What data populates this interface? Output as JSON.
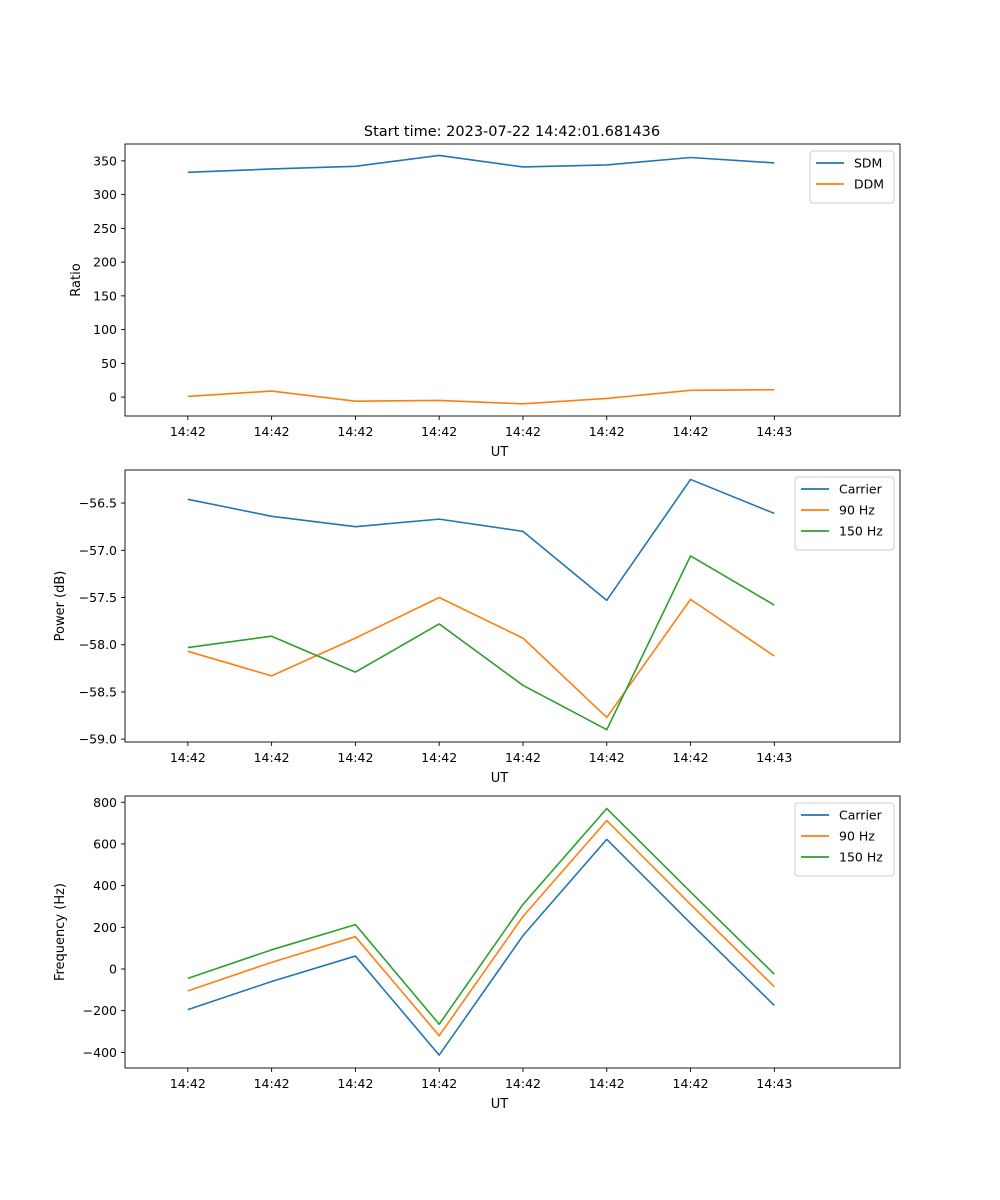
{
  "figure_title": "Start time: 2023-07-22 14:42:01.681436",
  "chart_data": [
    {
      "type": "line",
      "title": "Start time: 2023-07-22 14:42:01.681436",
      "xlabel": "UT",
      "ylabel": "Ratio",
      "x_ticks": [
        "14:42",
        "14:42",
        "14:42",
        "14:42",
        "14:42",
        "14:42",
        "14:42",
        "14:43"
      ],
      "x": [
        0,
        1,
        2,
        3,
        4,
        5,
        6,
        7
      ],
      "xlim": [
        -0.75,
        8.5
      ],
      "ylim": [
        -28,
        375
      ],
      "yticks": [
        0,
        50,
        100,
        150,
        200,
        250,
        300,
        350
      ],
      "ytick_labels": [
        "0",
        "50",
        "100",
        "150",
        "200",
        "250",
        "300",
        "350"
      ],
      "legend_position": "top-right",
      "series": [
        {
          "name": "SDM",
          "color": "#1f77b4",
          "values": [
            333,
            338,
            342,
            358,
            341,
            344,
            355,
            347
          ]
        },
        {
          "name": "DDM",
          "color": "#ff7f0e",
          "values": [
            1,
            9,
            -6,
            -5,
            -10,
            -2,
            10,
            11
          ]
        }
      ]
    },
    {
      "type": "line",
      "title": "",
      "xlabel": "UT",
      "ylabel": "Power (dB)",
      "x_ticks": [
        "14:42",
        "14:42",
        "14:42",
        "14:42",
        "14:42",
        "14:42",
        "14:42",
        "14:43"
      ],
      "x": [
        0,
        1,
        2,
        3,
        4,
        5,
        6,
        7
      ],
      "xlim": [
        -0.75,
        8.5
      ],
      "ylim": [
        -59.03,
        -56.15
      ],
      "yticks": [
        -59.0,
        -58.5,
        -58.0,
        -57.5,
        -57.0,
        -56.5
      ],
      "ytick_labels": [
        "−59.0",
        "−58.5",
        "−58.0",
        "−57.5",
        "−57.0",
        "−56.5"
      ],
      "legend_position": "top-right",
      "series": [
        {
          "name": "Carrier",
          "color": "#1f77b4",
          "values": [
            -56.46,
            -56.64,
            -56.75,
            -56.67,
            -56.8,
            -57.53,
            -56.25,
            -56.61
          ]
        },
        {
          "name": "90 Hz",
          "color": "#ff7f0e",
          "values": [
            -58.07,
            -58.33,
            -57.93,
            -57.5,
            -57.93,
            -58.77,
            -57.52,
            -58.12
          ]
        },
        {
          "name": "150 Hz",
          "color": "#2ca02c",
          "values": [
            -58.03,
            -57.91,
            -58.29,
            -57.78,
            -58.43,
            -58.9,
            -57.06,
            -57.58
          ]
        }
      ]
    },
    {
      "type": "line",
      "title": "",
      "xlabel": "UT",
      "ylabel": "Frequency (Hz)",
      "x_ticks": [
        "14:42",
        "14:42",
        "14:42",
        "14:42",
        "14:42",
        "14:42",
        "14:42",
        "14:43"
      ],
      "x": [
        0,
        1,
        2,
        3,
        4,
        5,
        6,
        7
      ],
      "xlim": [
        -0.75,
        8.5
      ],
      "ylim": [
        -475,
        830
      ],
      "yticks": [
        -400,
        -200,
        0,
        200,
        400,
        600,
        800
      ],
      "ytick_labels": [
        "−400",
        "−200",
        "0",
        "200",
        "400",
        "600",
        "800"
      ],
      "legend_position": "top-right",
      "series": [
        {
          "name": "Carrier",
          "color": "#1f77b4",
          "values": [
            -195,
            -60,
            62,
            -413,
            160,
            622,
            220,
            -175
          ]
        },
        {
          "name": "90 Hz",
          "color": "#ff7f0e",
          "values": [
            -105,
            32,
            155,
            -320,
            252,
            712,
            310,
            -85
          ]
        },
        {
          "name": "150 Hz",
          "color": "#2ca02c",
          "values": [
            -45,
            92,
            213,
            -265,
            310,
            770,
            370,
            -25
          ]
        }
      ]
    }
  ]
}
